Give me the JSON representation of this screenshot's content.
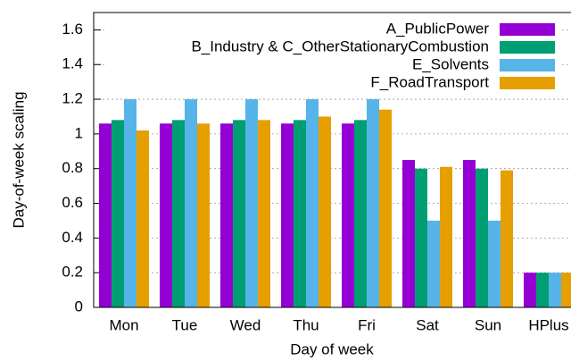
{
  "chart_data": {
    "type": "bar",
    "x_label": "Day of week",
    "y_label": "Day-of-week scaling",
    "categories": [
      "Mon",
      "Tue",
      "Wed",
      "Thu",
      "Fri",
      "Sat",
      "Sun",
      "HPlus"
    ],
    "series": [
      {
        "name": "A_PublicPower",
        "color": "#9400d3",
        "values": [
          1.06,
          1.06,
          1.06,
          1.06,
          1.06,
          0.85,
          0.85,
          0.2
        ]
      },
      {
        "name": "B_Industry & C_OtherStationaryCombustion",
        "color": "#009e73",
        "values": [
          1.08,
          1.08,
          1.08,
          1.08,
          1.08,
          0.8,
          0.8,
          0.2
        ]
      },
      {
        "name": "E_Solvents",
        "color": "#56b4e9",
        "values": [
          1.2,
          1.2,
          1.2,
          1.2,
          1.2,
          0.5,
          0.5,
          0.2
        ]
      },
      {
        "name": "F_RoadTransport",
        "color": "#e69f00",
        "values": [
          1.02,
          1.06,
          1.08,
          1.1,
          1.14,
          0.81,
          0.79,
          0.2
        ]
      }
    ],
    "ylim": [
      0,
      1.7
    ],
    "yticks": [
      0,
      0.2,
      0.4,
      0.6,
      0.8,
      1,
      1.2,
      1.4,
      1.6
    ],
    "grid": true,
    "legend": "top-right"
  }
}
